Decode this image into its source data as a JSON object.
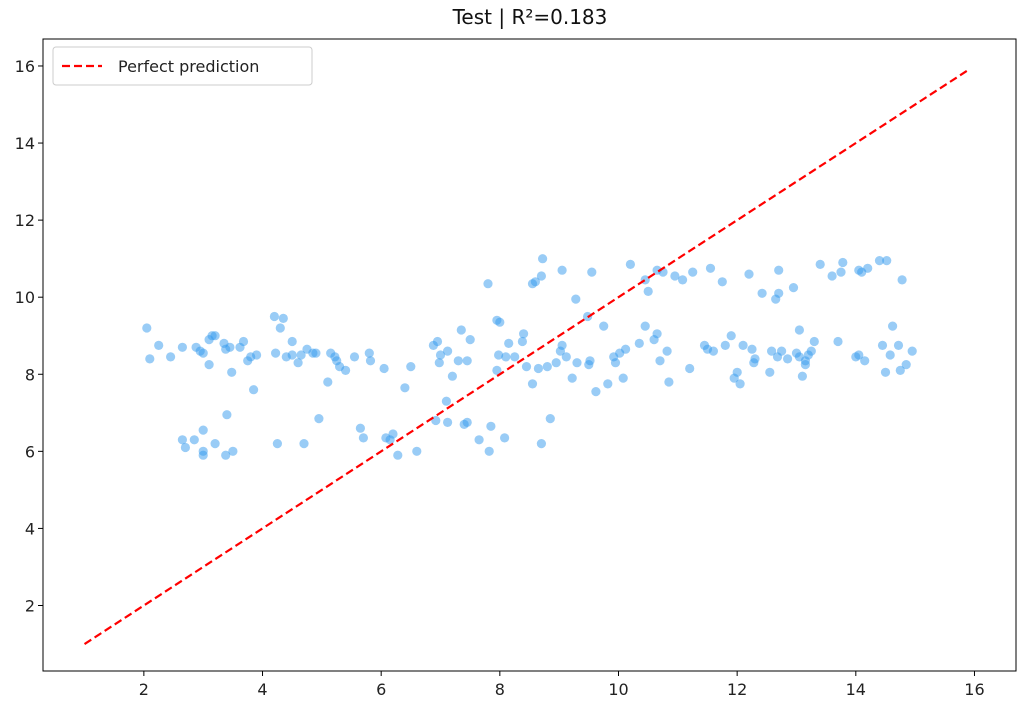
{
  "chart_data": {
    "type": "scatter",
    "title": "Test | R²=0.183",
    "xlabel": "",
    "ylabel": "",
    "xlim": [
      0.3,
      16.7
    ],
    "ylim": [
      0.3,
      16.7
    ],
    "xticks": [
      2,
      4,
      6,
      8,
      10,
      12,
      14,
      16
    ],
    "yticks": [
      2,
      4,
      6,
      8,
      10,
      12,
      14,
      16
    ],
    "grid": false,
    "legend": {
      "position": "top-left",
      "entries": [
        {
          "label": "Perfect prediction",
          "style": "dashed",
          "color": "#ff0000"
        }
      ]
    },
    "reference_line": {
      "name": "Perfect prediction",
      "x": [
        1.0,
        15.9
      ],
      "y": [
        1.0,
        15.9
      ],
      "color": "#ff0000",
      "style": "dashed"
    },
    "series": [
      {
        "color": "#3399ee",
        "points": [
          [
            2.05,
            9.2
          ],
          [
            2.1,
            8.4
          ],
          [
            2.25,
            8.75
          ],
          [
            2.45,
            8.45
          ],
          [
            2.65,
            8.7
          ],
          [
            2.65,
            6.3
          ],
          [
            2.7,
            6.1
          ],
          [
            2.85,
            6.3
          ],
          [
            2.88,
            8.7
          ],
          [
            2.95,
            8.6
          ],
          [
            3.0,
            8.55
          ],
          [
            3.0,
            6.55
          ],
          [
            3.0,
            6.0
          ],
          [
            3.0,
            5.9
          ],
          [
            3.1,
            8.9
          ],
          [
            3.15,
            9.0
          ],
          [
            3.1,
            8.25
          ],
          [
            3.2,
            9.0
          ],
          [
            3.2,
            6.2
          ],
          [
            3.35,
            8.8
          ],
          [
            3.38,
            8.65
          ],
          [
            3.38,
            5.9
          ],
          [
            3.4,
            6.95
          ],
          [
            3.45,
            8.7
          ],
          [
            3.5,
            6.0
          ],
          [
            3.48,
            8.05
          ],
          [
            3.62,
            8.7
          ],
          [
            3.68,
            8.85
          ],
          [
            3.75,
            8.35
          ],
          [
            3.8,
            8.45
          ],
          [
            3.85,
            7.6
          ],
          [
            3.9,
            8.5
          ],
          [
            4.2,
            9.5
          ],
          [
            4.22,
            8.55
          ],
          [
            4.25,
            6.2
          ],
          [
            4.3,
            9.2
          ],
          [
            4.35,
            9.45
          ],
          [
            4.4,
            8.45
          ],
          [
            4.5,
            8.85
          ],
          [
            4.5,
            8.5
          ],
          [
            4.6,
            8.3
          ],
          [
            4.65,
            8.5
          ],
          [
            4.7,
            6.2
          ],
          [
            4.75,
            8.65
          ],
          [
            4.85,
            8.55
          ],
          [
            4.9,
            8.55
          ],
          [
            4.95,
            6.85
          ],
          [
            5.1,
            7.8
          ],
          [
            5.15,
            8.55
          ],
          [
            5.22,
            8.45
          ],
          [
            5.25,
            8.35
          ],
          [
            5.3,
            8.2
          ],
          [
            5.4,
            8.1
          ],
          [
            5.55,
            8.45
          ],
          [
            5.65,
            6.6
          ],
          [
            5.7,
            6.35
          ],
          [
            5.8,
            8.55
          ],
          [
            5.82,
            8.35
          ],
          [
            6.05,
            8.15
          ],
          [
            6.08,
            6.35
          ],
          [
            6.15,
            6.3
          ],
          [
            6.2,
            6.45
          ],
          [
            6.28,
            5.9
          ],
          [
            6.4,
            7.65
          ],
          [
            6.5,
            8.2
          ],
          [
            6.6,
            6.0
          ],
          [
            6.88,
            8.75
          ],
          [
            6.92,
            6.8
          ],
          [
            6.95,
            8.85
          ],
          [
            6.98,
            8.3
          ],
          [
            7.0,
            8.5
          ],
          [
            7.1,
            7.3
          ],
          [
            7.12,
            6.75
          ],
          [
            7.12,
            8.6
          ],
          [
            7.2,
            7.95
          ],
          [
            7.3,
            8.35
          ],
          [
            7.35,
            9.15
          ],
          [
            7.4,
            6.7
          ],
          [
            7.45,
            6.75
          ],
          [
            7.45,
            8.35
          ],
          [
            7.5,
            8.9
          ],
          [
            7.65,
            6.3
          ],
          [
            7.8,
            10.35
          ],
          [
            7.82,
            6.0
          ],
          [
            7.85,
            6.65
          ],
          [
            7.95,
            9.4
          ],
          [
            7.95,
            8.1
          ],
          [
            7.98,
            8.5
          ],
          [
            8.0,
            9.35
          ],
          [
            8.08,
            6.35
          ],
          [
            8.1,
            8.45
          ],
          [
            8.15,
            8.8
          ],
          [
            8.25,
            8.45
          ],
          [
            8.38,
            8.85
          ],
          [
            8.4,
            9.05
          ],
          [
            8.45,
            8.2
          ],
          [
            8.55,
            7.75
          ],
          [
            8.55,
            10.35
          ],
          [
            8.6,
            10.4
          ],
          [
            8.65,
            8.15
          ],
          [
            8.7,
            10.55
          ],
          [
            8.7,
            6.2
          ],
          [
            8.72,
            11.0
          ],
          [
            8.8,
            8.2
          ],
          [
            8.85,
            6.85
          ],
          [
            8.95,
            8.3
          ],
          [
            9.02,
            8.6
          ],
          [
            9.05,
            8.75
          ],
          [
            9.05,
            10.7
          ],
          [
            9.12,
            8.45
          ],
          [
            9.22,
            7.9
          ],
          [
            9.28,
            9.95
          ],
          [
            9.3,
            8.3
          ],
          [
            9.48,
            9.5
          ],
          [
            9.5,
            8.25
          ],
          [
            9.52,
            8.35
          ],
          [
            9.55,
            10.65
          ],
          [
            9.62,
            7.55
          ],
          [
            9.75,
            9.25
          ],
          [
            9.82,
            7.75
          ],
          [
            9.92,
            8.45
          ],
          [
            9.95,
            8.3
          ],
          [
            10.02,
            8.55
          ],
          [
            10.08,
            7.9
          ],
          [
            10.12,
            8.65
          ],
          [
            10.2,
            10.85
          ],
          [
            10.35,
            8.8
          ],
          [
            10.45,
            9.25
          ],
          [
            10.45,
            10.45
          ],
          [
            10.5,
            10.15
          ],
          [
            10.6,
            8.9
          ],
          [
            10.65,
            9.05
          ],
          [
            10.65,
            10.7
          ],
          [
            10.7,
            8.35
          ],
          [
            10.75,
            10.65
          ],
          [
            10.82,
            8.6
          ],
          [
            10.85,
            7.8
          ],
          [
            10.95,
            10.55
          ],
          [
            11.08,
            10.45
          ],
          [
            11.2,
            8.15
          ],
          [
            11.25,
            10.65
          ],
          [
            11.45,
            8.75
          ],
          [
            11.5,
            8.65
          ],
          [
            11.55,
            10.75
          ],
          [
            11.6,
            8.6
          ],
          [
            11.75,
            10.4
          ],
          [
            11.8,
            8.75
          ],
          [
            11.9,
            9.0
          ],
          [
            11.95,
            7.9
          ],
          [
            12.0,
            8.05
          ],
          [
            12.05,
            7.75
          ],
          [
            12.1,
            8.75
          ],
          [
            12.2,
            10.6
          ],
          [
            12.25,
            8.65
          ],
          [
            12.28,
            8.3
          ],
          [
            12.3,
            8.4
          ],
          [
            12.42,
            10.1
          ],
          [
            12.55,
            8.05
          ],
          [
            12.58,
            8.6
          ],
          [
            12.65,
            9.95
          ],
          [
            12.68,
            8.45
          ],
          [
            12.7,
            10.7
          ],
          [
            12.7,
            10.1
          ],
          [
            12.75,
            8.6
          ],
          [
            12.85,
            8.4
          ],
          [
            12.95,
            10.25
          ],
          [
            13.0,
            8.55
          ],
          [
            13.05,
            9.15
          ],
          [
            13.05,
            8.45
          ],
          [
            13.1,
            7.95
          ],
          [
            13.15,
            8.25
          ],
          [
            13.15,
            8.35
          ],
          [
            13.2,
            8.5
          ],
          [
            13.25,
            8.6
          ],
          [
            13.3,
            8.85
          ],
          [
            13.4,
            10.85
          ],
          [
            13.6,
            10.55
          ],
          [
            13.7,
            8.85
          ],
          [
            13.75,
            10.65
          ],
          [
            13.78,
            10.9
          ],
          [
            14.0,
            8.45
          ],
          [
            14.05,
            8.5
          ],
          [
            14.05,
            10.7
          ],
          [
            14.1,
            10.65
          ],
          [
            14.15,
            8.35
          ],
          [
            14.2,
            10.75
          ],
          [
            14.4,
            10.95
          ],
          [
            14.45,
            8.75
          ],
          [
            14.5,
            8.05
          ],
          [
            14.52,
            10.95
          ],
          [
            14.58,
            8.5
          ],
          [
            14.62,
            9.25
          ],
          [
            14.72,
            8.75
          ],
          [
            14.75,
            8.1
          ],
          [
            14.78,
            10.45
          ],
          [
            14.85,
            8.25
          ],
          [
            14.95,
            8.6
          ]
        ]
      }
    ]
  }
}
